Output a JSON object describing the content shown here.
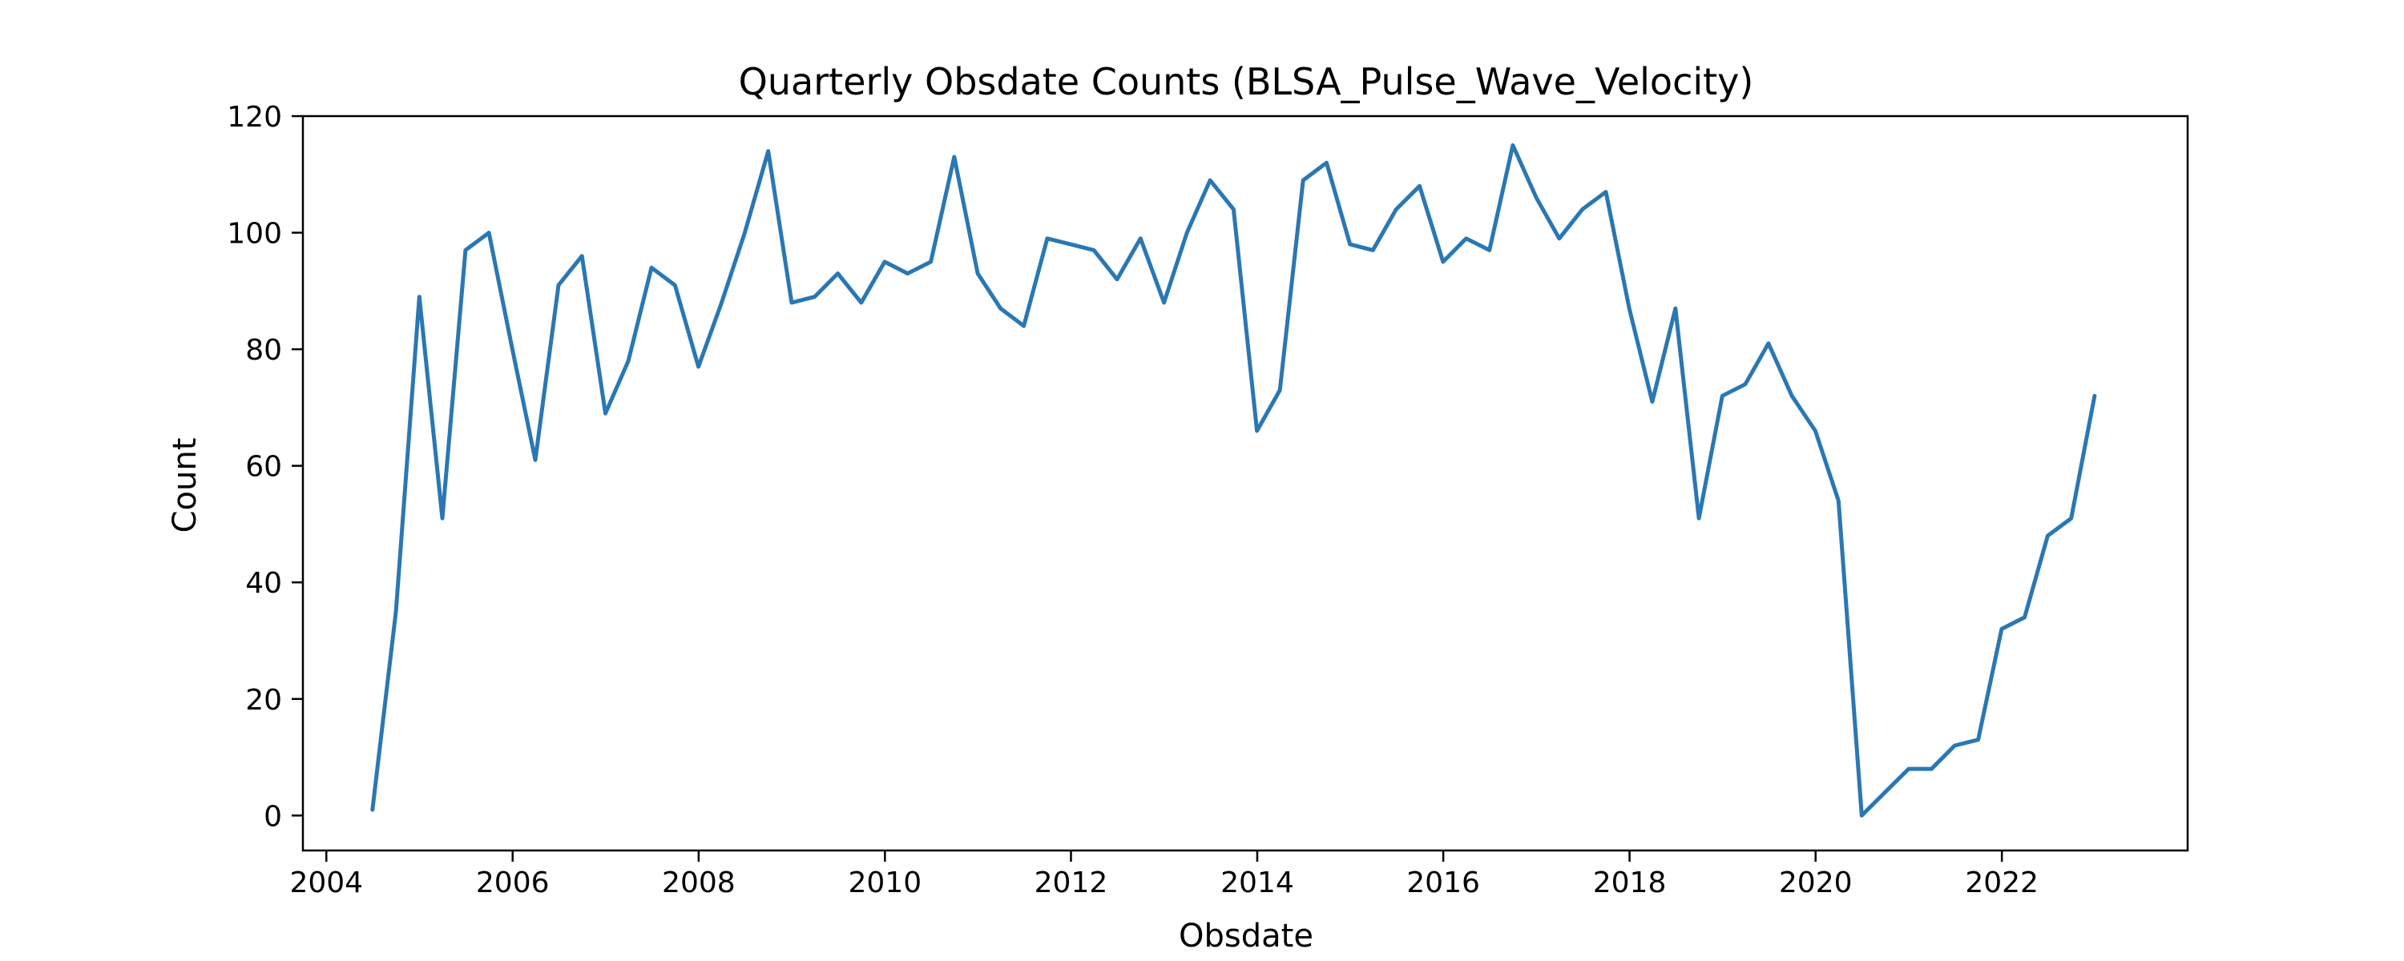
{
  "chart_data": {
    "type": "line",
    "title": "Quarterly Obsdate Counts (BLSA_Pulse_Wave_Velocity)",
    "xlabel": "Obsdate",
    "ylabel": "Count",
    "xlim": [
      "2003-10-01",
      "2023-12-31"
    ],
    "ylim": [
      -6,
      120
    ],
    "x_ticks": [
      "2004",
      "2006",
      "2008",
      "2010",
      "2012",
      "2014",
      "2016",
      "2018",
      "2020",
      "2022"
    ],
    "y_ticks": [
      "0",
      "20",
      "40",
      "60",
      "80",
      "100",
      "120"
    ],
    "grid": false,
    "line_color": "#2a77b4",
    "series": [
      {
        "x": [
          "2004-06-30",
          "2004-09-30",
          "2004-12-31",
          "2005-03-31",
          "2005-06-30",
          "2005-09-30",
          "2005-12-31",
          "2006-03-31",
          "2006-06-30",
          "2006-09-30",
          "2006-12-31",
          "2007-03-31",
          "2007-06-30",
          "2007-09-30",
          "2007-12-31",
          "2008-03-31",
          "2008-06-30",
          "2008-09-30",
          "2008-12-31",
          "2009-03-31",
          "2009-06-30",
          "2009-09-30",
          "2009-12-31",
          "2010-03-31",
          "2010-06-30",
          "2010-09-30",
          "2010-12-31",
          "2011-03-31",
          "2011-06-30",
          "2011-09-30",
          "2011-12-31",
          "2012-03-31",
          "2012-06-30",
          "2012-09-30",
          "2012-12-31",
          "2013-03-31",
          "2013-06-30",
          "2013-09-30",
          "2013-12-31",
          "2014-03-31",
          "2014-06-30",
          "2014-09-30",
          "2014-12-31",
          "2015-03-31",
          "2015-06-30",
          "2015-09-30",
          "2015-12-31",
          "2016-03-31",
          "2016-06-30",
          "2016-09-30",
          "2016-12-31",
          "2017-03-31",
          "2017-06-30",
          "2017-09-30",
          "2017-12-31",
          "2018-03-31",
          "2018-06-30",
          "2018-09-30",
          "2018-12-31",
          "2019-03-31",
          "2019-06-30",
          "2019-09-30",
          "2019-12-31",
          "2020-03-31",
          "2020-06-30",
          "2020-09-30",
          "2020-12-31",
          "2021-03-31",
          "2021-06-30",
          "2021-09-30",
          "2021-12-31",
          "2022-03-31",
          "2022-06-30",
          "2022-09-30",
          "2022-12-31"
        ],
        "values": [
          1,
          35,
          89,
          51,
          97,
          100,
          80,
          61,
          91,
          96,
          69,
          78,
          94,
          91,
          77,
          88,
          100,
          114,
          88,
          89,
          93,
          88,
          95,
          93,
          95,
          113,
          93,
          87,
          84,
          99,
          98,
          97,
          92,
          99,
          88,
          100,
          109,
          104,
          66,
          73,
          109,
          112,
          98,
          97,
          104,
          108,
          95,
          99,
          97,
          115,
          106,
          99,
          104,
          107,
          87,
          71,
          87,
          51,
          72,
          74,
          81,
          72,
          66,
          54,
          0,
          4,
          8,
          8,
          12,
          13,
          32,
          34,
          48,
          51,
          72
        ]
      }
    ]
  }
}
